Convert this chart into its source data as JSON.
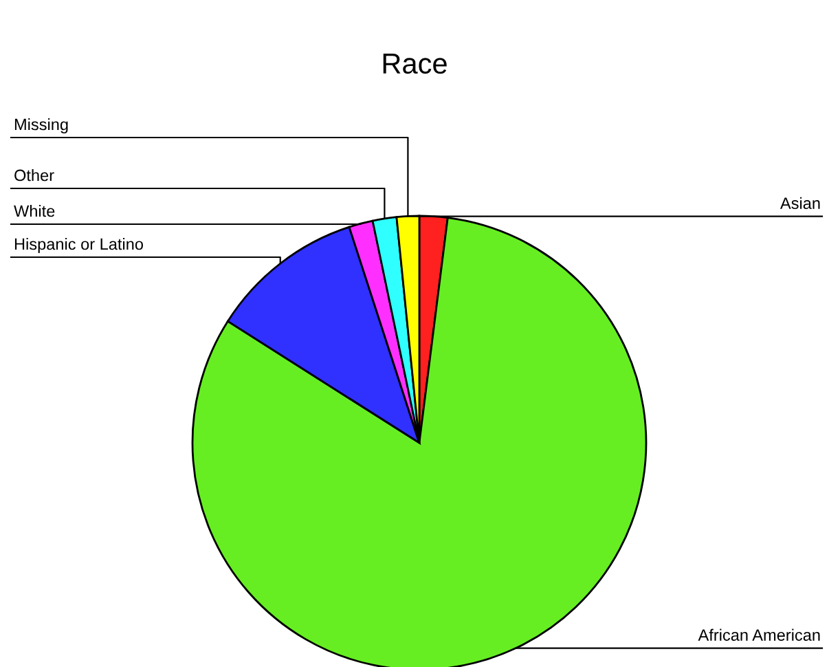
{
  "chart_data": {
    "type": "pie",
    "title": "Race",
    "categories": [
      "Asian",
      "African American",
      "Hispanic or Latino",
      "White",
      "Other",
      "Missing"
    ],
    "values": [
      2,
      82,
      11,
      1.7,
      1.7,
      1.6
    ],
    "colors": [
      "#ff2020",
      "#66ee22",
      "#3030ff",
      "#ff30ff",
      "#30ffff",
      "#ffff00"
    ]
  }
}
